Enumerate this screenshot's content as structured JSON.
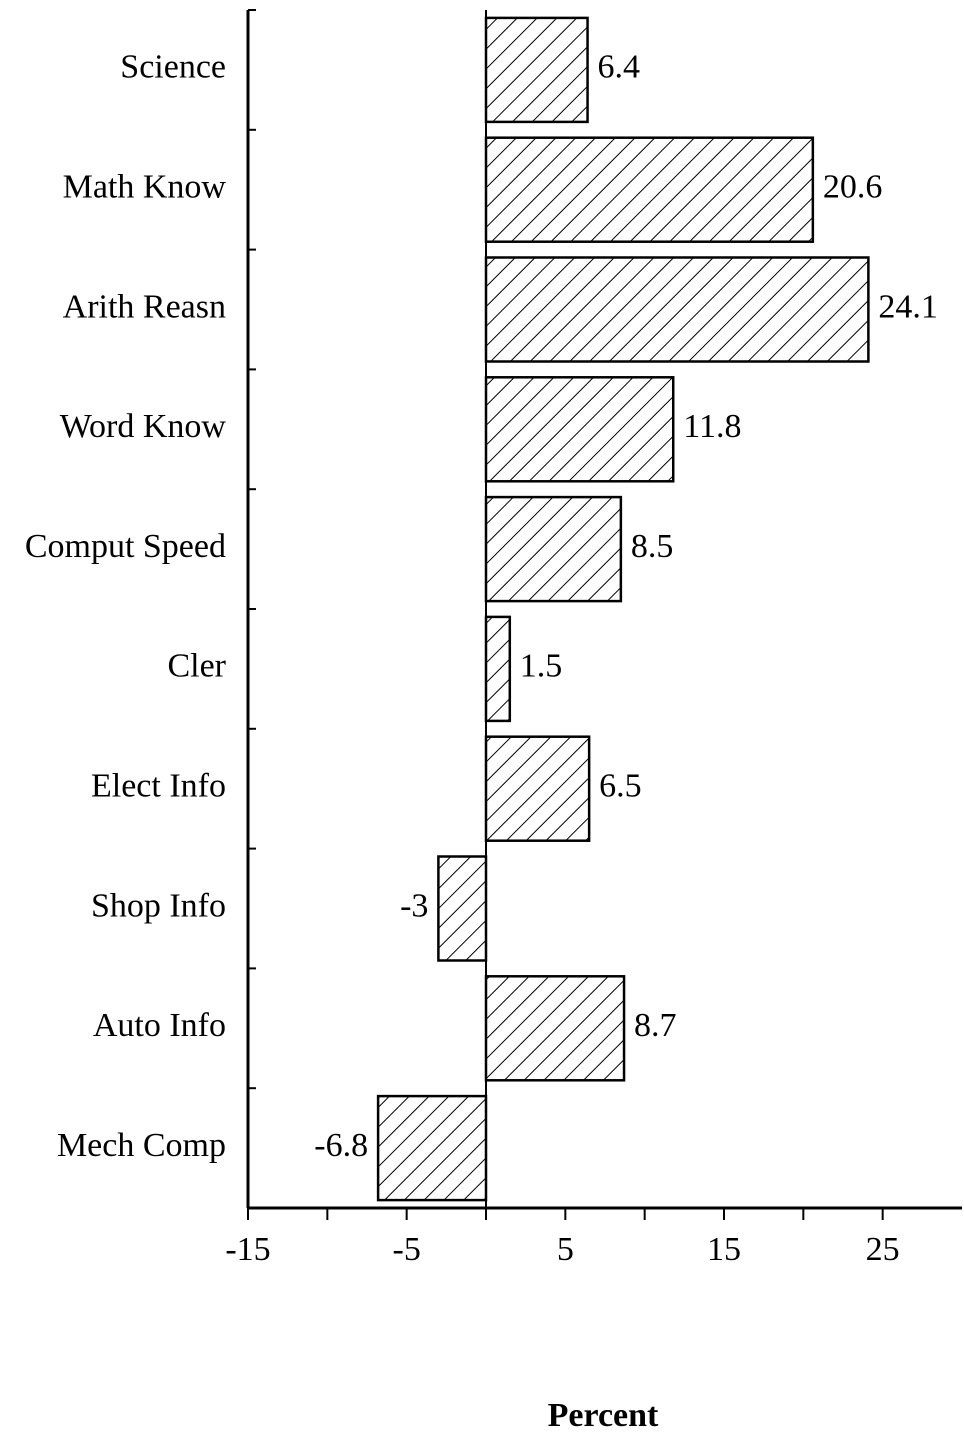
{
  "chart_data": {
    "type": "bar",
    "orientation": "horizontal",
    "x_label": "Percent",
    "categories": [
      "Science",
      "Math Know",
      "Arith Reasn",
      "Word Know",
      "Comput Speed",
      "Cler",
      "Elect Info",
      "Shop Info",
      "Auto Info",
      "Mech Comp"
    ],
    "values": [
      6.4,
      20.6,
      24.1,
      11.8,
      8.5,
      1.5,
      6.5,
      -3,
      8.7,
      -6.8
    ],
    "color": "#000000",
    "pattern": "hatch",
    "xlim": [
      -15,
      30
    ],
    "xticks": [
      -15,
      -5,
      5,
      15,
      25
    ],
    "xminor_ticks": [
      -10,
      0,
      10,
      20
    ],
    "grid": false
  }
}
